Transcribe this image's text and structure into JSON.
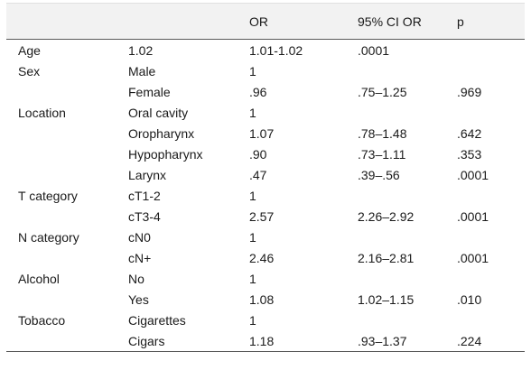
{
  "table": {
    "headers": [
      "",
      "",
      "OR",
      "95% CI OR",
      "p"
    ],
    "rows": [
      [
        "Age",
        "1.02",
        "1.01-1.02",
        ".0001",
        ""
      ],
      [
        "Sex",
        "Male",
        "1",
        "",
        ""
      ],
      [
        "",
        "Female",
        ".96",
        ".75–1.25",
        ".969"
      ],
      [
        "Location",
        "Oral cavity",
        "1",
        "",
        ""
      ],
      [
        "",
        "Oropharynx",
        "1.07",
        ".78–1.48",
        ".642"
      ],
      [
        "",
        "Hypopharynx",
        ".90",
        ".73–1.11",
        ".353"
      ],
      [
        "",
        "Larynx",
        ".47",
        ".39–.56",
        ".0001"
      ],
      [
        "T category",
        "cT1-2",
        "1",
        "",
        ""
      ],
      [
        "",
        "cT3-4",
        "2.57",
        "2.26–2.92",
        ".0001"
      ],
      [
        "N category",
        "cN0",
        "1",
        "",
        ""
      ],
      [
        "",
        "cN+",
        "2.46",
        "2.16–2.81",
        ".0001"
      ],
      [
        "Alcohol",
        "No",
        "1",
        "",
        ""
      ],
      [
        "",
        "Yes",
        "1.08",
        "1.02–1.15",
        ".010"
      ],
      [
        "Tobacco",
        "Cigarettes",
        "1",
        "",
        ""
      ],
      [
        "",
        "Cigars",
        "1.18",
        ".93–1.37",
        ".224"
      ]
    ]
  }
}
